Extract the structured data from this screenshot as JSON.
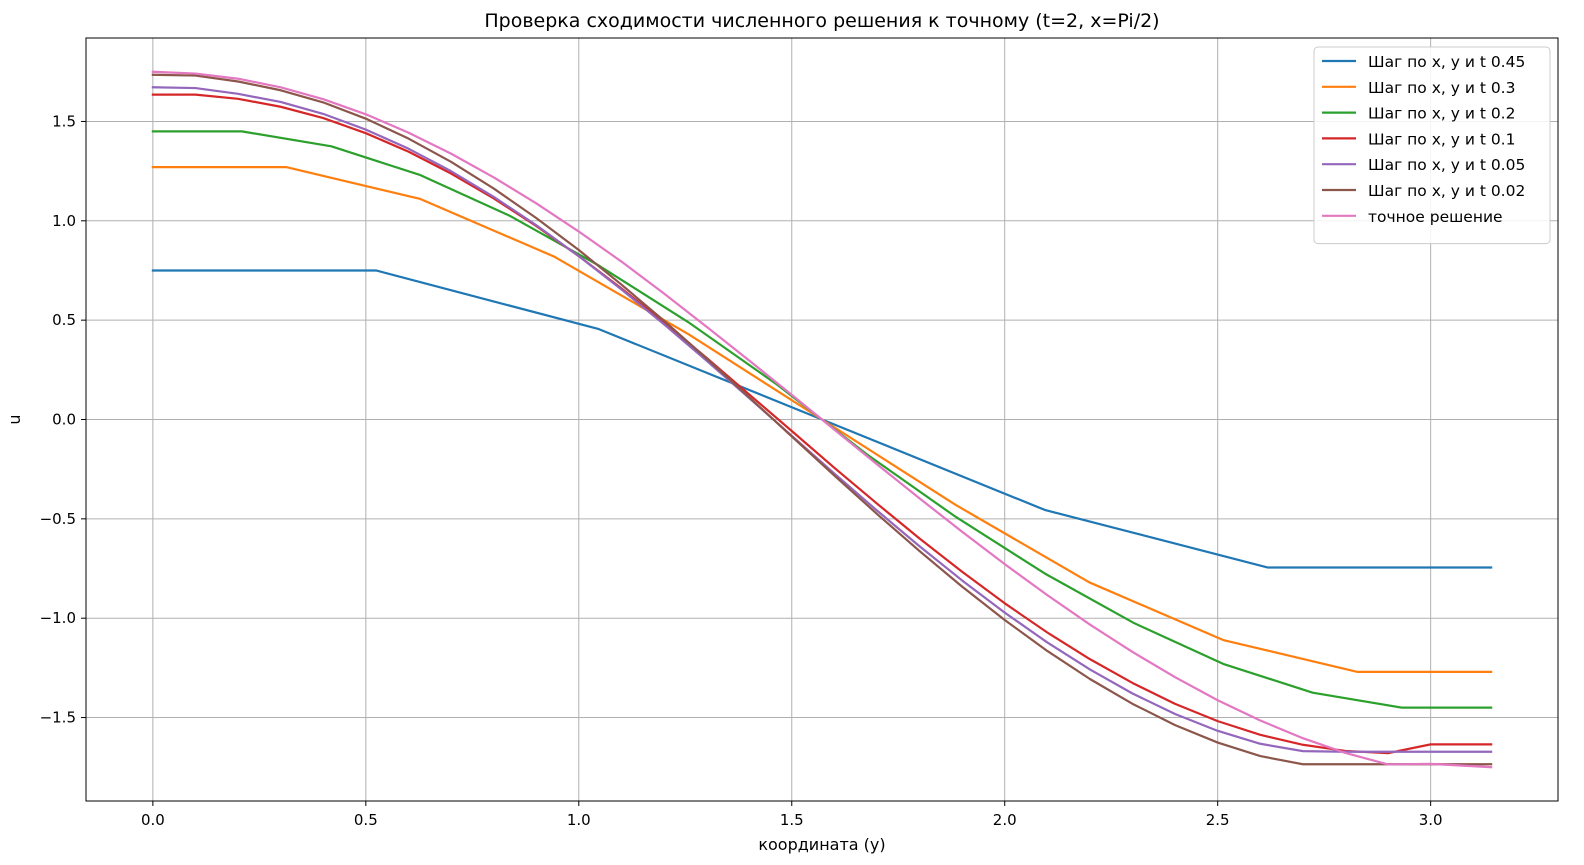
{
  "chart_data": {
    "type": "line",
    "title": "Проверка сходимости численного решения к точному (t=2, x=Pi/2)",
    "xlabel": "координата (y)",
    "ylabel": "u",
    "xlim": [
      -0.157,
      3.299
    ],
    "ylim": [
      -1.92,
      1.92
    ],
    "xticks": [
      0.0,
      0.5,
      1.0,
      1.5,
      2.0,
      2.5,
      3.0
    ],
    "xtick_labels": [
      "0.0",
      "0.5",
      "1.0",
      "1.5",
      "2.0",
      "2.5",
      "3.0"
    ],
    "yticks": [
      -1.5,
      -1.0,
      -0.5,
      0.0,
      0.5,
      1.0,
      1.5
    ],
    "ytick_labels": [
      "−1.5",
      "−1.0",
      "−0.5",
      "0.0",
      "0.5",
      "1.0",
      "1.5"
    ],
    "grid": true,
    "legend_position": "top-right",
    "series": [
      {
        "name": "Шаг по x, y и t 0.45",
        "color": "#1f77b4",
        "x": [
          0.0,
          0.524,
          1.047,
          1.571,
          2.094,
          2.618,
          3.142
        ],
        "y": [
          0.75,
          0.75,
          0.455,
          0.0,
          -0.455,
          -0.745,
          -0.745
        ]
      },
      {
        "name": "Шаг по x, y и t 0.3",
        "color": "#ff7f0e",
        "x": [
          0.0,
          0.314,
          0.628,
          0.942,
          1.257,
          1.571,
          1.885,
          2.199,
          2.513,
          2.827,
          3.142
        ],
        "y": [
          1.27,
          1.27,
          1.11,
          0.82,
          0.43,
          0.0,
          -0.43,
          -0.82,
          -1.11,
          -1.27,
          -1.27
        ]
      },
      {
        "name": "Шаг по x, y и t 0.2",
        "color": "#2ca02c",
        "x": [
          0.0,
          0.209,
          0.419,
          0.628,
          0.838,
          1.047,
          1.257,
          1.466,
          1.676,
          1.885,
          2.094,
          2.304,
          2.513,
          2.723,
          2.932,
          3.142
        ],
        "y": [
          1.45,
          1.45,
          1.375,
          1.23,
          1.025,
          0.775,
          0.49,
          0.175,
          -0.175,
          -0.49,
          -0.775,
          -1.025,
          -1.23,
          -1.375,
          -1.45,
          -1.45
        ]
      },
      {
        "name": "Шаг по x, y и t 0.1",
        "color": "#d62728",
        "x": [
          0.0,
          0.1,
          0.2,
          0.3,
          0.4,
          0.5,
          0.6,
          0.7,
          0.8,
          0.9,
          1.0,
          1.1,
          1.2,
          1.3,
          1.4,
          1.5,
          1.6,
          1.7,
          1.8,
          1.9,
          2.0,
          2.1,
          2.2,
          2.3,
          2.4,
          2.5,
          2.6,
          2.7,
          2.8,
          2.9,
          3.0,
          3.142
        ],
        "y": [
          1.635,
          1.635,
          1.614,
          1.574,
          1.517,
          1.441,
          1.348,
          1.238,
          1.113,
          0.974,
          0.822,
          0.66,
          0.488,
          0.31,
          0.126,
          -0.058,
          -0.243,
          -0.423,
          -0.599,
          -0.766,
          -0.925,
          -1.072,
          -1.206,
          -1.326,
          -1.431,
          -1.518,
          -1.587,
          -1.637,
          -1.668,
          -1.679,
          -1.635,
          -1.635
        ]
      },
      {
        "name": "Шаг по x, y и t 0.05",
        "color": "#9467bd",
        "x": [
          0.0,
          0.1,
          0.2,
          0.3,
          0.4,
          0.5,
          0.6,
          0.7,
          0.8,
          0.9,
          1.0,
          1.1,
          1.2,
          1.3,
          1.4,
          1.5,
          1.6,
          1.7,
          1.8,
          1.9,
          2.0,
          2.1,
          2.2,
          2.3,
          2.4,
          2.5,
          2.6,
          2.7,
          2.8,
          2.9,
          3.0,
          3.142
        ],
        "y": [
          1.672,
          1.668,
          1.639,
          1.598,
          1.538,
          1.459,
          1.363,
          1.25,
          1.121,
          0.978,
          0.822,
          0.655,
          0.479,
          0.296,
          0.108,
          -0.082,
          -0.272,
          -0.458,
          -0.638,
          -0.81,
          -0.972,
          -1.122,
          -1.258,
          -1.379,
          -1.482,
          -1.567,
          -1.632,
          -1.669,
          -1.672,
          -1.672,
          -1.672,
          -1.672
        ]
      },
      {
        "name": "Шаг по x, y и t 0.02",
        "color": "#8c564b",
        "x": [
          0.0,
          0.1,
          0.2,
          0.3,
          0.4,
          0.5,
          0.6,
          0.7,
          0.8,
          0.9,
          1.0,
          1.1,
          1.2,
          1.3,
          1.4,
          1.5,
          1.6,
          1.7,
          1.8,
          1.9,
          2.0,
          2.1,
          2.2,
          2.3,
          2.4,
          2.5,
          2.6,
          2.7,
          2.8,
          2.9,
          3.0,
          3.142
        ],
        "y": [
          1.735,
          1.731,
          1.701,
          1.657,
          1.596,
          1.514,
          1.414,
          1.297,
          1.163,
          1.014,
          0.853,
          0.679,
          0.497,
          0.307,
          0.112,
          -0.085,
          -0.282,
          -0.475,
          -0.662,
          -0.841,
          -1.009,
          -1.165,
          -1.306,
          -1.431,
          -1.538,
          -1.626,
          -1.694,
          -1.735,
          -1.735,
          -1.735,
          -1.735,
          -1.735
        ]
      },
      {
        "name": "точное решение",
        "color": "#e377c2",
        "x": [
          0.0,
          0.1,
          0.2,
          0.3,
          0.4,
          0.5,
          0.6,
          0.7,
          0.8,
          0.9,
          1.0,
          1.1,
          1.2,
          1.3,
          1.4,
          1.5,
          1.6,
          1.7,
          1.8,
          1.9,
          2.0,
          2.1,
          2.2,
          2.3,
          2.4,
          2.5,
          2.6,
          2.7,
          2.8,
          2.9,
          3.0,
          3.142
        ],
        "y": [
          1.75,
          1.741,
          1.715,
          1.672,
          1.612,
          1.536,
          1.444,
          1.338,
          1.219,
          1.088,
          0.946,
          0.795,
          0.634,
          0.467,
          0.297,
          0.124,
          -0.051,
          -0.225,
          -0.397,
          -0.565,
          -0.728,
          -0.884,
          -1.032,
          -1.17,
          -1.297,
          -1.413,
          -1.515,
          -1.604,
          -1.678,
          -1.736,
          -1.733,
          -1.75
        ]
      }
    ]
  }
}
